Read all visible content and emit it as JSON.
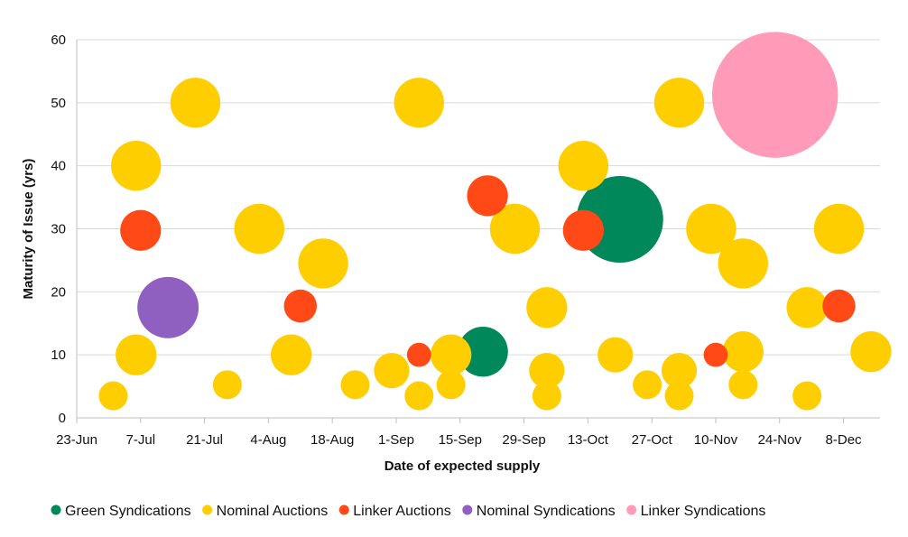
{
  "chart_data": {
    "type": "bubble",
    "xlabel": "Date of expected supply",
    "ylabel": "Maturity of Issue (yrs)",
    "x_ticks": [
      "23-Jun",
      "7-Jul",
      "21-Jul",
      "4-Aug",
      "18-Aug",
      "1-Sep",
      "15-Sep",
      "29-Sep",
      "13-Oct",
      "27-Oct",
      "10-Nov",
      "24-Nov",
      "8-Dec"
    ],
    "x_range": [
      "2024-06-23",
      "2024-12-16"
    ],
    "y_ticks": [
      0,
      10,
      20,
      30,
      40,
      50,
      60
    ],
    "ylim": [
      0,
      60
    ],
    "grid": "horizontal",
    "legend_position": "bottom",
    "series": [
      {
        "name": "Green Syndications",
        "color": "#00875a",
        "points": [
          {
            "date": "2024-09-20",
            "y": 10.5,
            "size": 3
          },
          {
            "date": "2024-10-20",
            "y": 31.5,
            "size": 9
          }
        ]
      },
      {
        "name": "Nominal Auctions",
        "color": "#ffce00",
        "points": [
          {
            "date": "2024-07-01",
            "y": 3.5,
            "size": 1
          },
          {
            "date": "2024-07-06",
            "y": 10,
            "size": 2
          },
          {
            "date": "2024-07-06",
            "y": 40,
            "size": 3
          },
          {
            "date": "2024-07-19",
            "y": 50,
            "size": 3
          },
          {
            "date": "2024-07-26",
            "y": 5.25,
            "size": 1
          },
          {
            "date": "2024-08-02",
            "y": 30,
            "size": 3
          },
          {
            "date": "2024-08-09",
            "y": 10,
            "size": 2
          },
          {
            "date": "2024-08-16",
            "y": 24.5,
            "size": 3
          },
          {
            "date": "2024-08-23",
            "y": 5.25,
            "size": 1
          },
          {
            "date": "2024-08-31",
            "y": 7.5,
            "size": 1.5
          },
          {
            "date": "2024-09-06",
            "y": 50,
            "size": 3
          },
          {
            "date": "2024-09-06",
            "y": 3.5,
            "size": 1
          },
          {
            "date": "2024-09-13",
            "y": 5.25,
            "size": 1
          },
          {
            "date": "2024-09-13",
            "y": 10,
            "size": 2
          },
          {
            "date": "2024-09-27",
            "y": 30,
            "size": 3
          },
          {
            "date": "2024-10-04",
            "y": 17.5,
            "size": 2
          },
          {
            "date": "2024-10-04",
            "y": 7.5,
            "size": 1.5
          },
          {
            "date": "2024-10-04",
            "y": 3.5,
            "size": 1
          },
          {
            "date": "2024-10-12",
            "y": 40,
            "size": 3
          },
          {
            "date": "2024-10-19",
            "y": 10,
            "size": 1.5
          },
          {
            "date": "2024-10-26",
            "y": 5.25,
            "size": 1
          },
          {
            "date": "2024-11-02",
            "y": 50,
            "size": 3
          },
          {
            "date": "2024-11-02",
            "y": 7.5,
            "size": 1.5
          },
          {
            "date": "2024-11-02",
            "y": 3.5,
            "size": 1
          },
          {
            "date": "2024-11-09",
            "y": 30,
            "size": 3
          },
          {
            "date": "2024-11-16",
            "y": 24.5,
            "size": 3
          },
          {
            "date": "2024-11-16",
            "y": 10.5,
            "size": 2
          },
          {
            "date": "2024-11-16",
            "y": 5.25,
            "size": 1
          },
          {
            "date": "2024-11-30",
            "y": 17.5,
            "size": 2
          },
          {
            "date": "2024-11-30",
            "y": 3.5,
            "size": 1
          },
          {
            "date": "2024-12-07",
            "y": 30,
            "size": 3
          },
          {
            "date": "2024-12-14",
            "y": 10.5,
            "size": 2
          }
        ]
      },
      {
        "name": "Linker Auctions",
        "color": "#ff4a17",
        "points": [
          {
            "date": "2024-07-07",
            "y": 29.75,
            "size": 2
          },
          {
            "date": "2024-08-11",
            "y": 17.75,
            "size": 1.3
          },
          {
            "date": "2024-09-06",
            "y": 10,
            "size": 0.7
          },
          {
            "date": "2024-09-21",
            "y": 35.25,
            "size": 2
          },
          {
            "date": "2024-10-12",
            "y": 29.75,
            "size": 2
          },
          {
            "date": "2024-11-10",
            "y": 10,
            "size": 0.7
          },
          {
            "date": "2024-12-07",
            "y": 17.75,
            "size": 1.3
          }
        ]
      },
      {
        "name": "Nominal Syndications",
        "color": "#8f60bf",
        "points": [
          {
            "date": "2024-07-13",
            "y": 17.5,
            "size": 4.5
          }
        ]
      },
      {
        "name": "Linker Syndications",
        "color": "#ff9bb8",
        "points": [
          {
            "date": "2024-11-23",
            "y": 51.25,
            "size": 19
          }
        ]
      }
    ]
  }
}
